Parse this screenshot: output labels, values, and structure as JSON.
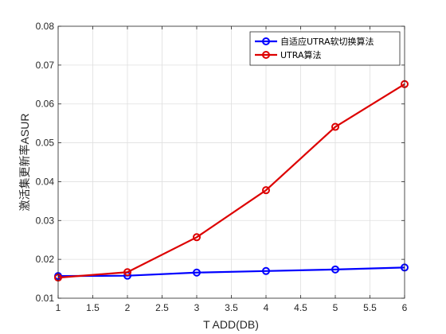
{
  "chart_data": {
    "type": "line",
    "xlabel": "T ADD(DB)",
    "ylabel": "激活集更新率ASUR",
    "xlim": [
      1,
      6
    ],
    "ylim": [
      0.01,
      0.08
    ],
    "xticks": [
      "1",
      "1.5",
      "2",
      "2.5",
      "3",
      "3.5",
      "4",
      "4.5",
      "5",
      "5.5",
      "6"
    ],
    "yticks": [
      "0.01",
      "0.02",
      "0.03",
      "0.04",
      "0.05",
      "0.06",
      "0.07",
      "0.08"
    ],
    "grid": true,
    "legend_position": "top-right",
    "x": [
      1,
      2,
      3,
      4,
      5,
      6
    ],
    "series": [
      {
        "name": "自适应UTRA软切换算法",
        "color": "#0000ff",
        "marker": "circle",
        "values": [
          0.0157,
          0.0158,
          0.0166,
          0.017,
          0.0174,
          0.0179
        ]
      },
      {
        "name": "UTRA算法",
        "color": "#dd0000",
        "marker": "circle",
        "values": [
          0.0153,
          0.0167,
          0.0257,
          0.0378,
          0.0541,
          0.0651
        ]
      }
    ]
  }
}
